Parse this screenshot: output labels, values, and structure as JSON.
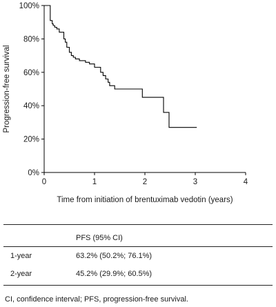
{
  "chart_data": {
    "type": "line",
    "xlabel": "Time from initiation of brentuximab vedotin (years)",
    "ylabel": "Progression-free survival",
    "xlim": [
      0,
      4
    ],
    "ylim": [
      0,
      100
    ],
    "x_ticks": [
      "0",
      "1",
      "2",
      "3",
      "4"
    ],
    "y_ticks": [
      "0%",
      "20%",
      "40%",
      "60%",
      "80%",
      "100%"
    ],
    "grid": false,
    "series": [
      {
        "curve": "step",
        "x": [
          0,
          0.12,
          0.16,
          0.18,
          0.21,
          0.25,
          0.3,
          0.36,
          0.39,
          0.42,
          0.45,
          0.5,
          0.54,
          0.58,
          0.62,
          0.7,
          0.82,
          0.9,
          1.0,
          1.12,
          1.17,
          1.22,
          1.27,
          1.3,
          1.4,
          1.95,
          2.37,
          2.48,
          3.03
        ],
        "y": [
          100,
          91,
          89,
          88,
          87,
          86,
          84,
          84,
          80,
          78,
          75,
          72,
          70,
          69,
          68,
          67,
          66,
          65,
          63,
          60,
          58,
          56,
          54,
          52,
          50,
          45,
          36,
          27,
          27
        ]
      }
    ]
  },
  "table": {
    "header": "PFS (95% CI)",
    "rows": [
      {
        "label": "1-year",
        "value": "63.2% (50.2%; 76.1%)"
      },
      {
        "label": "2-year",
        "value": "45.2% (29.9%; 60.5%)"
      }
    ]
  },
  "footnote": "CI, confidence interval; PFS, progression-free survival."
}
